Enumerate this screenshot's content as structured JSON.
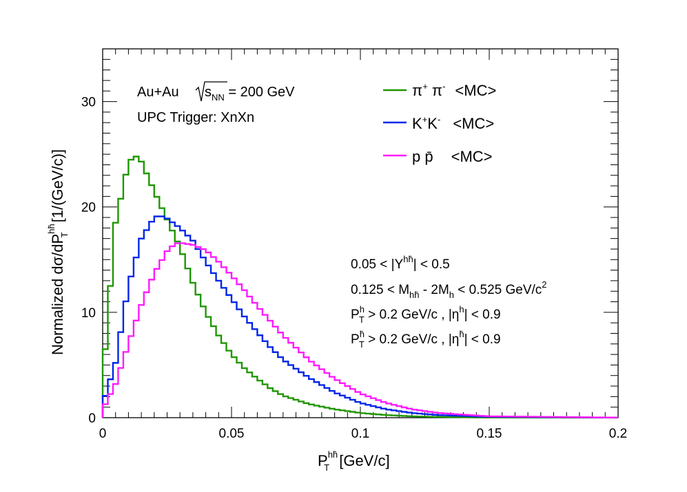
{
  "chart_data": {
    "type": "line",
    "xlabel": {
      "main": "P",
      "sub": "T",
      "sup": "hh̄",
      "unit": " [GeV/c]"
    },
    "ylabel": {
      "pre": "Normalized dσ/dP",
      "sub": "T",
      "sup": "hh̄",
      "unit": " [1/(GeV/c)]"
    },
    "xlim": [
      0,
      0.2
    ],
    "ylim": [
      0,
      35
    ],
    "x_ticks": [
      {
        "value": 0,
        "label": "0"
      },
      {
        "value": 0.05,
        "label": "0.05"
      },
      {
        "value": 0.1,
        "label": "0.1"
      },
      {
        "value": 0.15,
        "label": "0.15"
      },
      {
        "value": 0.2,
        "label": "0.2"
      }
    ],
    "y_ticks": [
      {
        "value": 0,
        "label": "0"
      },
      {
        "value": 10,
        "label": "10"
      },
      {
        "value": 20,
        "label": "20"
      },
      {
        "value": 30,
        "label": "30"
      }
    ],
    "grid": false,
    "legend_position": "top-right",
    "series": [
      {
        "name": "π⁺ π⁻ <MC>",
        "legend": {
          "base": "π",
          "sup1": "+",
          "mid": " π",
          "sup2": "-",
          "tag": "<MC>"
        },
        "color": "#1f9600",
        "points": [
          [
            0.0,
            3.5
          ],
          [
            0.005,
            18.5
          ],
          [
            0.01,
            24.2
          ],
          [
            0.0125,
            24.9
          ],
          [
            0.015,
            24.3
          ],
          [
            0.02,
            21.5
          ],
          [
            0.025,
            18.8
          ],
          [
            0.03,
            16.2
          ],
          [
            0.035,
            12.8
          ],
          [
            0.04,
            10.0
          ],
          [
            0.045,
            7.8
          ],
          [
            0.05,
            6.0
          ],
          [
            0.055,
            4.7
          ],
          [
            0.06,
            3.7
          ],
          [
            0.065,
            2.8
          ],
          [
            0.07,
            2.1
          ],
          [
            0.08,
            1.3
          ],
          [
            0.09,
            0.8
          ],
          [
            0.1,
            0.45
          ],
          [
            0.11,
            0.25
          ],
          [
            0.12,
            0.13
          ],
          [
            0.13,
            0.07
          ],
          [
            0.15,
            0.02
          ],
          [
            0.2,
            0.0
          ]
        ]
      },
      {
        "name": "K⁺K⁻ <MC>",
        "legend": {
          "base": "K",
          "sup1": "+",
          "mid": "K",
          "sup2": "-",
          "tag": "<MC>"
        },
        "color": "#0026e6",
        "points": [
          [
            0.0,
            1.3
          ],
          [
            0.005,
            5.2
          ],
          [
            0.01,
            12.5
          ],
          [
            0.015,
            17.0
          ],
          [
            0.02,
            19.0
          ],
          [
            0.022,
            19.2
          ],
          [
            0.025,
            18.9
          ],
          [
            0.03,
            18.0
          ],
          [
            0.035,
            16.8
          ],
          [
            0.04,
            14.8
          ],
          [
            0.045,
            13.0
          ],
          [
            0.05,
            11.3
          ],
          [
            0.055,
            9.6
          ],
          [
            0.06,
            8.1
          ],
          [
            0.065,
            6.7
          ],
          [
            0.07,
            5.5
          ],
          [
            0.08,
            3.8
          ],
          [
            0.09,
            2.4
          ],
          [
            0.1,
            1.4
          ],
          [
            0.11,
            0.8
          ],
          [
            0.12,
            0.45
          ],
          [
            0.13,
            0.25
          ],
          [
            0.15,
            0.08
          ],
          [
            0.2,
            0.01
          ]
        ]
      },
      {
        "name": "p p̄ <MC>",
        "legend": {
          "base": "p p̄",
          "sup1": "",
          "mid": "",
          "sup2": "",
          "tag": "<MC>"
        },
        "color": "#ff1aff",
        "points": [
          [
            0.0,
            0.8
          ],
          [
            0.005,
            3.2
          ],
          [
            0.01,
            7.0
          ],
          [
            0.015,
            10.7
          ],
          [
            0.02,
            13.7
          ],
          [
            0.025,
            15.8
          ],
          [
            0.028,
            16.5
          ],
          [
            0.03,
            16.6
          ],
          [
            0.035,
            16.4
          ],
          [
            0.04,
            15.9
          ],
          [
            0.045,
            14.8
          ],
          [
            0.05,
            13.5
          ],
          [
            0.055,
            12.1
          ],
          [
            0.06,
            10.6
          ],
          [
            0.065,
            9.2
          ],
          [
            0.07,
            7.8
          ],
          [
            0.08,
            5.5
          ],
          [
            0.09,
            3.7
          ],
          [
            0.1,
            2.3
          ],
          [
            0.11,
            1.4
          ],
          [
            0.12,
            0.8
          ],
          [
            0.13,
            0.45
          ],
          [
            0.15,
            0.13
          ],
          [
            0.2,
            0.01
          ]
        ]
      }
    ],
    "annotations": {
      "collision": {
        "system": "Au+Au",
        "sqrt": "s",
        "sqrt_sub": "NN",
        "value": " = 200 GeV"
      },
      "trigger": "UPC  Trigger: XnXn",
      "cuts": [
        {
          "pre": "0.05 < |Y",
          "sup": "hh̄",
          "post": "| < 0.5"
        },
        {
          "pre": "0.125 < M",
          "sub": "hh̄",
          "mid": " - 2M",
          "sub2": "h",
          "post": " < 0.525 GeV/c",
          "sup": "2"
        },
        {
          "pre": "P",
          "sub": "T",
          "sup": "h",
          "mid": " > 0.2 GeV/c , |η",
          "sup2": "h",
          "post": "| < 0.9"
        },
        {
          "pre": "P",
          "sub": "T",
          "sup": "h̄",
          "mid": " > 0.2 GeV/c , |η",
          "sup2": "h̄",
          "post": "| < 0.9"
        }
      ]
    }
  }
}
